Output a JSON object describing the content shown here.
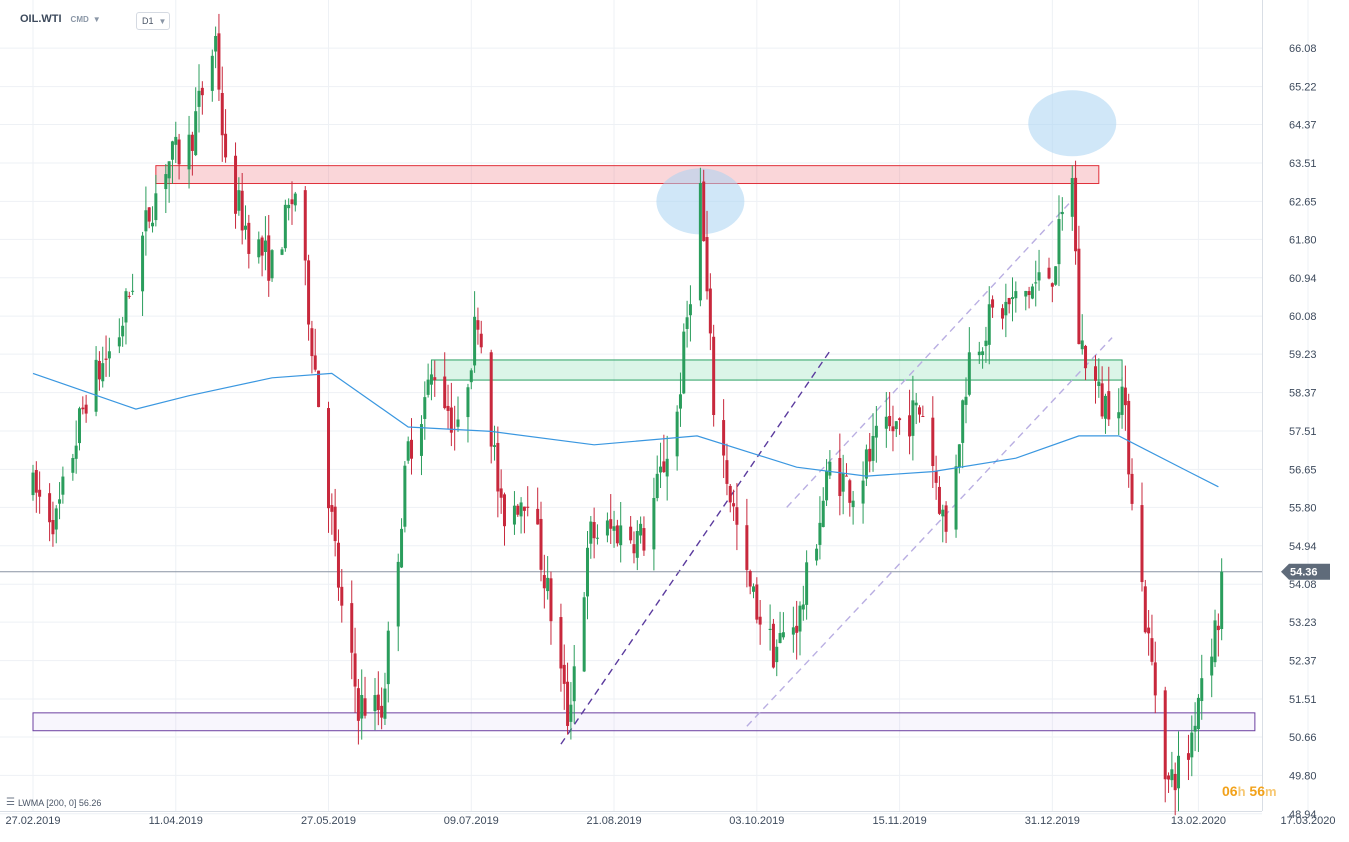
{
  "header": {
    "symbol": "OIL.WTI",
    "source": "CMD",
    "timeframe": "D1"
  },
  "indicator_label": "LWMA [200, 0] 56.26",
  "countdown": {
    "hours": "06",
    "hours_unit": "h",
    "minutes": "56",
    "minutes_unit": "m"
  },
  "colors": {
    "up": "#2a9d5c",
    "down": "#c8283c",
    "lwma": "#3a97e0",
    "resistance_zone": "#e0303a",
    "support_zone": "#2aa163",
    "low_zone": "#6b3fa0",
    "highlight": "#a9d4f2",
    "trend_dark": "#5b3b9e",
    "trend_light": "#b9aee2",
    "current_price_tag": "#5f6b7a"
  },
  "chart_data": {
    "type": "candlestick",
    "title": "",
    "instrument": "OIL.WTI",
    "timeframe": "D1",
    "y_range": [
      48.6,
      66.8
    ],
    "y_ticks": [
      "66.08",
      "65.22",
      "64.37",
      "63.51",
      "62.65",
      "61.80",
      "60.94",
      "60.08",
      "59.23",
      "58.37",
      "57.51",
      "56.65",
      "55.80",
      "54.94",
      "54.08",
      "53.23",
      "52.37",
      "51.51",
      "50.66",
      "49.80",
      "48.94"
    ],
    "x_ticks": [
      "27.02.2019",
      "11.04.2019",
      "27.05.2019",
      "09.07.2019",
      "21.08.2019",
      "03.10.2019",
      "15.11.2019",
      "31.12.2019",
      "13.02.2020",
      "17.03.2020"
    ],
    "x_range": [
      "2019-02-27",
      "2020-03-17"
    ],
    "grid": true,
    "current_price": {
      "label": "54.36",
      "value": 54.36
    },
    "price_path": [
      [
        "2019-02-27",
        56.2
      ],
      [
        "2019-03-06",
        55.5
      ],
      [
        "2019-03-15",
        58.3
      ],
      [
        "2019-03-25",
        59.7
      ],
      [
        "2019-04-03",
        62.4
      ],
      [
        "2019-04-08",
        63.5
      ],
      [
        "2019-04-15",
        63.9
      ],
      [
        "2019-04-23",
        66.3
      ],
      [
        "2019-04-26",
        63.3
      ],
      [
        "2019-05-03",
        61.9
      ],
      [
        "2019-05-10",
        61.2
      ],
      [
        "2019-05-17",
        62.9
      ],
      [
        "2019-05-23",
        58.9
      ],
      [
        "2019-05-31",
        53.4
      ],
      [
        "2019-06-05",
        51.4
      ],
      [
        "2019-06-12",
        51.3
      ],
      [
        "2019-06-20",
        57.1
      ],
      [
        "2019-06-28",
        58.9
      ],
      [
        "2019-07-05",
        57.4
      ],
      [
        "2019-07-11",
        60.2
      ],
      [
        "2019-07-18",
        55.6
      ],
      [
        "2019-07-26",
        56.2
      ],
      [
        "2019-08-01",
        53.9
      ],
      [
        "2019-08-07",
        51.1
      ],
      [
        "2019-08-14",
        55.2
      ],
      [
        "2019-08-22",
        55.3
      ],
      [
        "2019-08-30",
        55.1
      ],
      [
        "2019-09-09",
        57.9
      ],
      [
        "2019-09-16",
        62.9
      ],
      [
        "2019-09-20",
        58.1
      ],
      [
        "2019-09-30",
        54.1
      ],
      [
        "2019-10-08",
        52.6
      ],
      [
        "2019-10-16",
        53.4
      ],
      [
        "2019-10-25",
        56.7
      ],
      [
        "2019-11-01",
        56.2
      ],
      [
        "2019-11-08",
        57.2
      ],
      [
        "2019-11-15",
        57.7
      ],
      [
        "2019-11-22",
        58.0
      ],
      [
        "2019-11-29",
        55.2
      ],
      [
        "2019-12-06",
        59.2
      ],
      [
        "2019-12-13",
        60.1
      ],
      [
        "2019-12-20",
        60.4
      ],
      [
        "2019-12-31",
        61.1
      ],
      [
        "2020-01-06",
        63.3
      ],
      [
        "2020-01-08",
        59.6
      ],
      [
        "2020-01-15",
        58.1
      ],
      [
        "2020-01-21",
        58.4
      ],
      [
        "2020-01-28",
        53.3
      ],
      [
        "2020-02-04",
        49.6
      ],
      [
        "2020-02-10",
        50.3
      ],
      [
        "2020-02-14",
        52.1
      ],
      [
        "2020-02-19",
        53.3
      ],
      [
        "2020-02-20",
        54.36
      ]
    ],
    "series": [
      {
        "name": "LWMA [200, 0]",
        "x": [
          "2019-02-27",
          "2019-03-30",
          "2019-04-15",
          "2019-05-10",
          "2019-05-28",
          "2019-06-20",
          "2019-07-15",
          "2019-08-15",
          "2019-09-15",
          "2019-10-15",
          "2019-11-05",
          "2019-11-25",
          "2019-12-20",
          "2020-01-08",
          "2020-01-20",
          "2020-02-10",
          "2020-02-19"
        ],
        "values": [
          58.8,
          58.0,
          58.3,
          58.7,
          58.8,
          57.6,
          57.5,
          57.2,
          57.4,
          56.7,
          56.5,
          56.6,
          56.9,
          57.4,
          57.4,
          56.6,
          56.26
        ]
      }
    ],
    "zones": [
      {
        "from": "2019-04-05",
        "to": "2020-01-14",
        "low": 63.05,
        "high": 63.45
      },
      {
        "from": "2019-06-27",
        "to": "2020-01-21",
        "low": 58.65,
        "high": 59.1
      },
      {
        "from": "2019-02-27",
        "to": "2020-03-01",
        "low": 50.8,
        "high": 51.2
      }
    ],
    "trendlines": [
      {
        "from": [
          "2019-08-05",
          50.5
        ],
        "to": [
          "2019-10-25",
          59.3
        ]
      },
      {
        "from": [
          "2019-09-30",
          50.9
        ],
        "to": [
          "2020-01-18",
          59.6
        ]
      },
      {
        "from": [
          "2019-10-12",
          55.8
        ],
        "to": [
          "2020-01-05",
          62.6
        ]
      }
    ],
    "highlights": [
      {
        "x": "2019-09-16",
        "y": 62.65
      },
      {
        "x": "2020-01-06",
        "y": 64.4
      }
    ]
  }
}
